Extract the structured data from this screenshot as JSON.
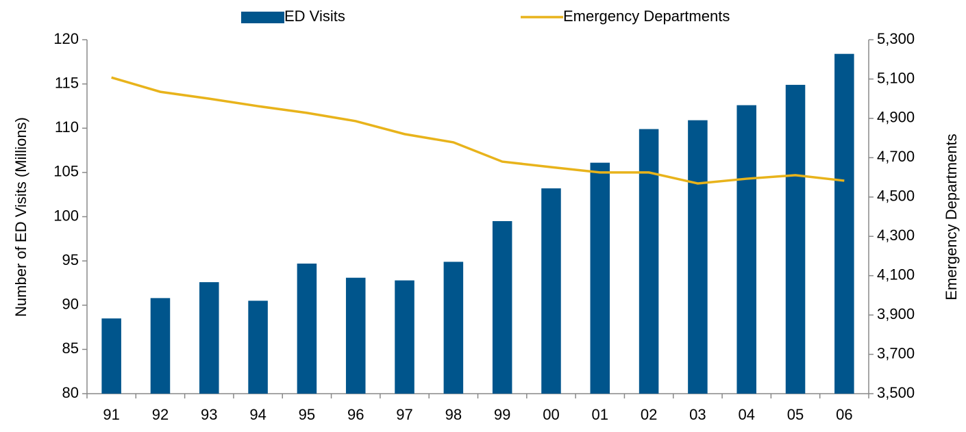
{
  "chart_data": {
    "type": "bar+line",
    "categories": [
      "91",
      "92",
      "93",
      "94",
      "95",
      "96",
      "97",
      "98",
      "99",
      "00",
      "01",
      "02",
      "03",
      "04",
      "05",
      "06"
    ],
    "series": [
      {
        "name": "ED Visits",
        "type": "bar",
        "color": "#00558c",
        "axis": "y",
        "values": [
          88.5,
          90.8,
          92.6,
          90.5,
          94.7,
          93.1,
          92.8,
          94.9,
          99.5,
          103.2,
          106.1,
          109.9,
          110.9,
          112.6,
          114.9,
          118.4
        ]
      },
      {
        "name": "Emergency Departments",
        "type": "line",
        "color": "#e8b31b",
        "axis": "y2",
        "values": [
          5108,
          5035,
          5000,
          4962,
          4928,
          4886,
          4820,
          4778,
          4680,
          4652,
          4625,
          4625,
          4569,
          4593,
          4611,
          4583
        ]
      }
    ],
    "ylabel": "Number of ED Visits (Millions)",
    "y2label": "Emergency Departments",
    "ylim": [
      80,
      120
    ],
    "yticks": [
      80,
      85,
      90,
      95,
      100,
      105,
      110,
      115,
      120
    ],
    "y2lim": [
      3500,
      5300
    ],
    "y2ticks": [
      {
        "value": 3500,
        "label": "3,500"
      },
      {
        "value": 3700,
        "label": "3,700"
      },
      {
        "value": 3900,
        "label": "3,900"
      },
      {
        "value": 4100,
        "label": "4,100"
      },
      {
        "value": 4300,
        "label": "4,300"
      },
      {
        "value": 4500,
        "label": "4,500"
      },
      {
        "value": 4700,
        "label": "4,700"
      },
      {
        "value": 4900,
        "label": "4,900"
      },
      {
        "value": 5100,
        "label": "5,100"
      },
      {
        "value": 5300,
        "label": "5,300"
      }
    ],
    "legend": "top",
    "grid": false
  }
}
